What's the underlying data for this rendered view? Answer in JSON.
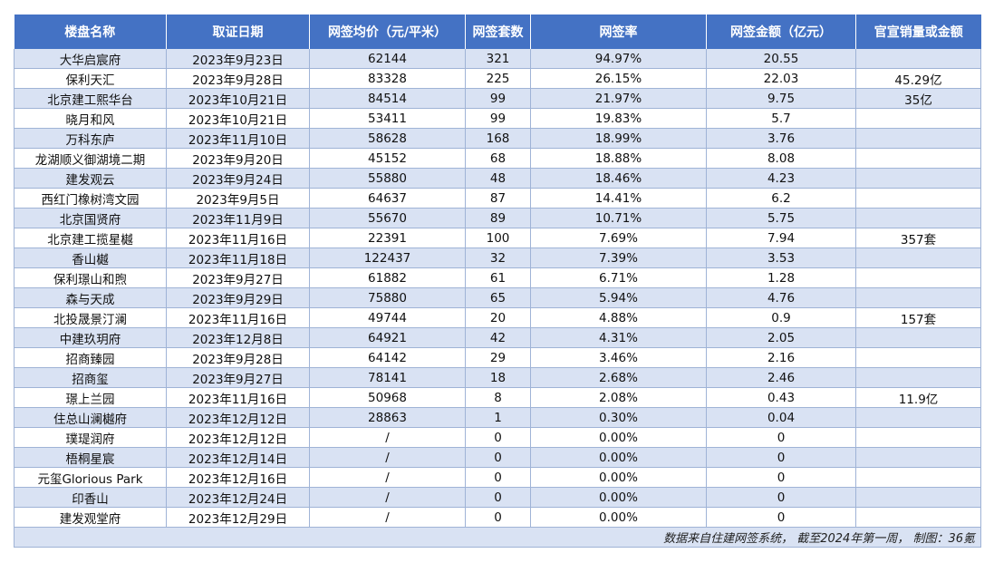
{
  "table": {
    "headers": [
      "楼盘名称",
      "取证日期",
      "网签均价（元/平米）",
      "网签套数",
      "网签率",
      "网签金额（亿元）",
      "官宣销量或金额"
    ],
    "rows": [
      [
        "大华启宸府",
        "2023年9月23日",
        "62144",
        "321",
        "94.97%",
        "20.55",
        ""
      ],
      [
        "保利天汇",
        "2023年9月28日",
        "83328",
        "225",
        "26.15%",
        "22.03",
        "45.29亿"
      ],
      [
        "北京建工熙华台",
        "2023年10月21日",
        "84514",
        "99",
        "21.97%",
        "9.75",
        "35亿"
      ],
      [
        "晓月和风",
        "2023年10月21日",
        "53411",
        "99",
        "19.83%",
        "5.7",
        ""
      ],
      [
        "万科东庐",
        "2023年11月10日",
        "58628",
        "168",
        "18.99%",
        "3.76",
        ""
      ],
      [
        "龙湖顺义御湖境二期",
        "2023年9月20日",
        "45152",
        "68",
        "18.88%",
        "8.08",
        ""
      ],
      [
        "建发观云",
        "2023年9月24日",
        "55880",
        "48",
        "18.46%",
        "4.23",
        ""
      ],
      [
        "西红门橡树湾文园",
        "2023年9月5日",
        "64637",
        "87",
        "14.41%",
        "6.2",
        ""
      ],
      [
        "北京国贤府",
        "2023年11月9日",
        "55670",
        "89",
        "10.71%",
        "5.75",
        ""
      ],
      [
        "北京建工揽星樾",
        "2023年11月16日",
        "22391",
        "100",
        "7.69%",
        "7.94",
        "357套"
      ],
      [
        "香山樾",
        "2023年11月18日",
        "122437",
        "32",
        "7.39%",
        "3.53",
        ""
      ],
      [
        "保利璟山和煦",
        "2023年9月27日",
        "61882",
        "61",
        "6.71%",
        "1.28",
        ""
      ],
      [
        "森与天成",
        "2023年9月29日",
        "75880",
        "65",
        "5.94%",
        "4.76",
        ""
      ],
      [
        "北投晟景汀澜",
        "2023年11月16日",
        "49744",
        "20",
        "4.88%",
        "0.9",
        "157套"
      ],
      [
        "中建玖玥府",
        "2023年12月8日",
        "64921",
        "42",
        "4.31%",
        "2.05",
        ""
      ],
      [
        "招商臻园",
        "2023年9月28日",
        "64142",
        "29",
        "3.46%",
        "2.16",
        ""
      ],
      [
        "招商玺",
        "2023年9月27日",
        "78141",
        "18",
        "2.68%",
        "2.46",
        ""
      ],
      [
        "璟上兰园",
        "2023年11月16日",
        "50968",
        "8",
        "2.08%",
        "0.43",
        "11.9亿"
      ],
      [
        "住总山澜樾府",
        "2023年12月12日",
        "28863",
        "1",
        "0.30%",
        "0.04",
        ""
      ],
      [
        "璞瑅润府",
        "2023年12月12日",
        "/",
        "0",
        "0.00%",
        "0",
        ""
      ],
      [
        "梧桐星宸",
        "2023年12月14日",
        "/",
        "0",
        "0.00%",
        "0",
        ""
      ],
      [
        "元玺Glorious Park",
        "2023年12月16日",
        "/",
        "0",
        "0.00%",
        "0",
        ""
      ],
      [
        "印香山",
        "2023年12月24日",
        "/",
        "0",
        "0.00%",
        "0",
        ""
      ],
      [
        "建发观堂府",
        "2023年12月29日",
        "/",
        "0",
        "0.00%",
        "0",
        ""
      ]
    ],
    "footnote": "数据来自住建网签系统，  截至2024年第一周，  制图：36氪"
  },
  "colors": {
    "header_bg": "#4472c4",
    "band": "#d9e2f3",
    "border": "#9fb3d6"
  }
}
